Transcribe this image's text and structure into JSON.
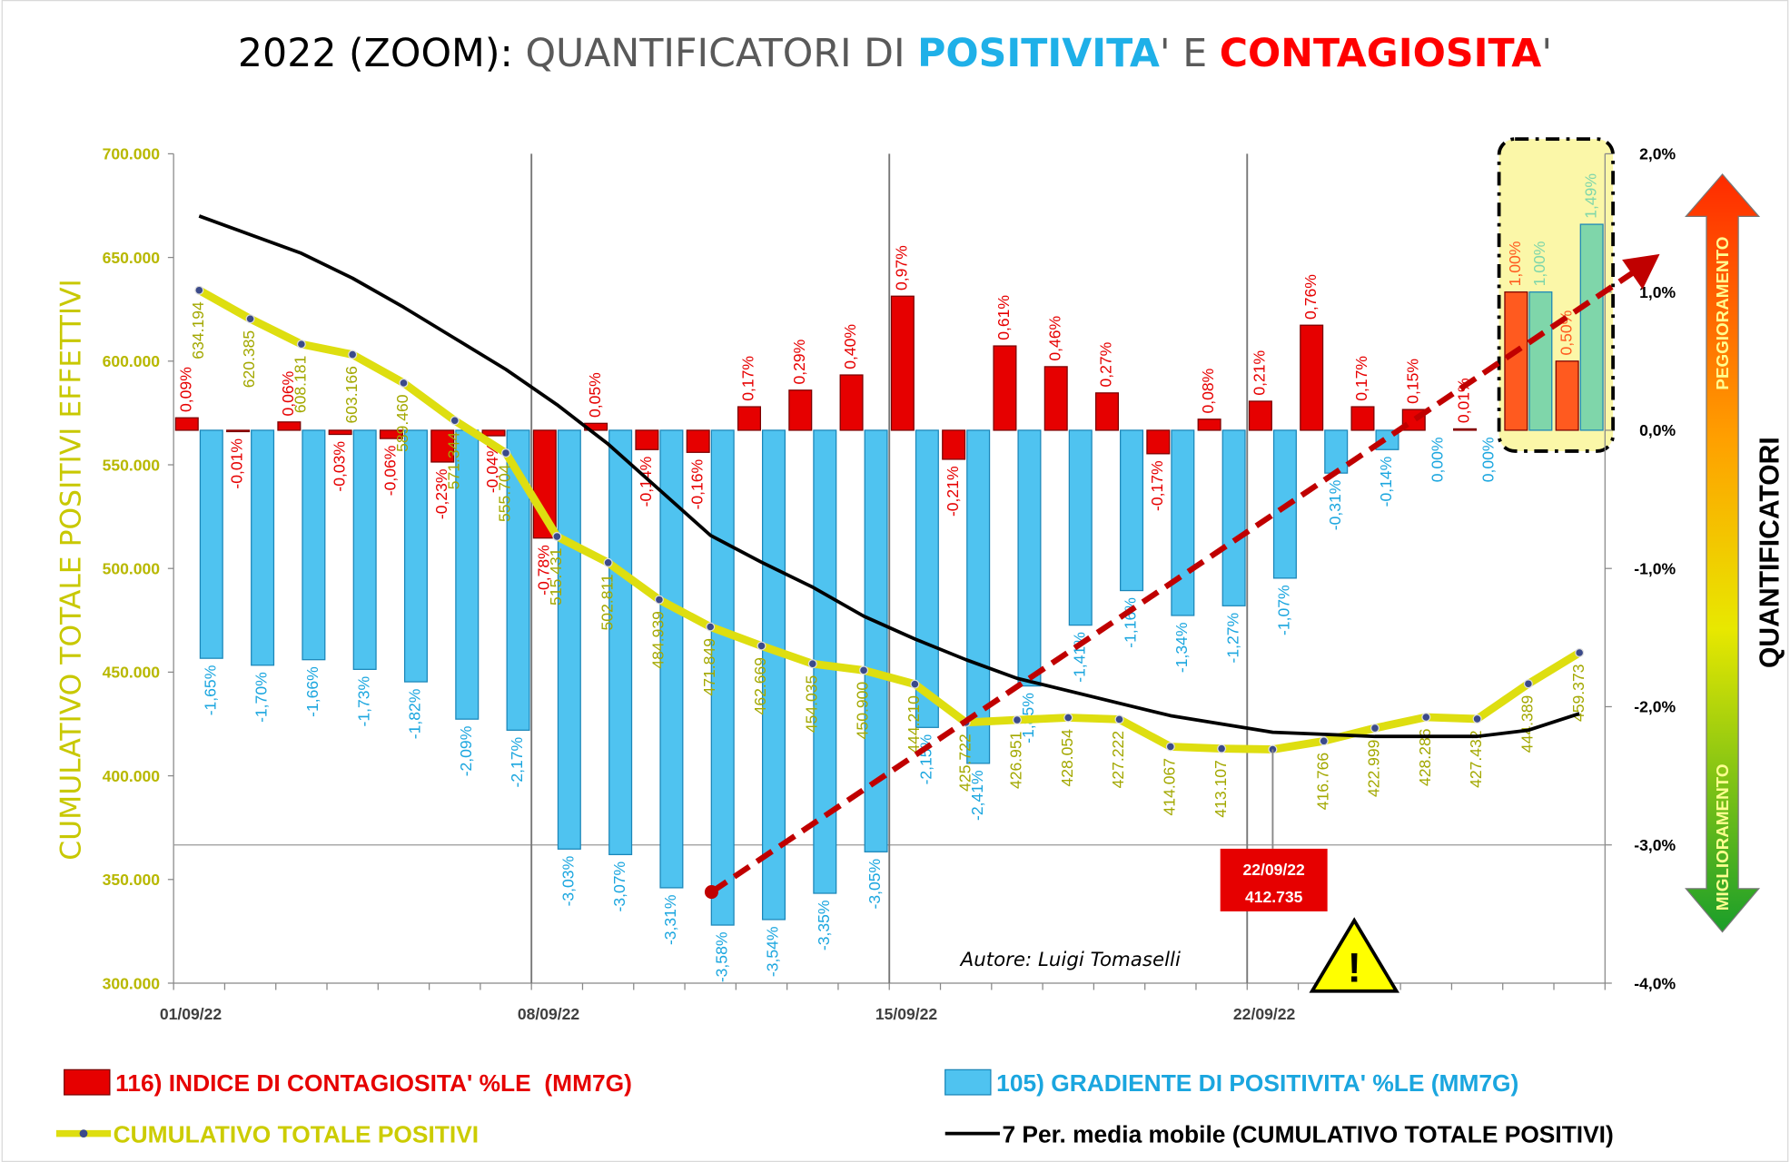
{
  "chart_data": {
    "type": "combo",
    "title_parts": [
      {
        "text": "2022 (ZOOM): ",
        "color": "#000000",
        "bold": false
      },
      {
        "text": "QUANTIFICATORI DI ",
        "color": "#595959",
        "bold": false
      },
      {
        "text": "POSITIVITA",
        "color": "#1fb0e8",
        "bold": true
      },
      {
        "text": "' E ",
        "color": "#595959",
        "bold": false
      },
      {
        "text": "CONTAGIOSITA",
        "color": "#ff0000",
        "bold": true
      },
      {
        "text": "'",
        "color": "#595959",
        "bold": false
      }
    ],
    "ylabel": "CUMULATIVO TOTALE POSITIVI EFFETTIVI",
    "y2label": "QUANTIFICATORI",
    "scale_top": "PEGGIORAMENTO",
    "scale_bottom": "MIGLIORAMENTO",
    "author": "Autore: Luigi Tomaselli",
    "callout": {
      "index": 21,
      "date": "22/09/22",
      "value": "412.735"
    },
    "categories": [
      "01/09/22",
      null,
      null,
      null,
      null,
      null,
      null,
      "08/09/22",
      null,
      null,
      null,
      null,
      null,
      null,
      "15/09/22",
      null,
      null,
      null,
      null,
      null,
      null,
      "22/09/22",
      null,
      null,
      null,
      null,
      null,
      null
    ],
    "ylim": [
      300000,
      700000
    ],
    "yticks": [
      {
        "value": 300000,
        "label": "300.000"
      },
      {
        "value": 350000,
        "label": "350.000"
      },
      {
        "value": 400000,
        "label": "400.000"
      },
      {
        "value": 450000,
        "label": "450.000"
      },
      {
        "value": 500000,
        "label": "500.000"
      },
      {
        "value": 550000,
        "label": "550.000"
      },
      {
        "value": 600000,
        "label": "600.000"
      },
      {
        "value": 650000,
        "label": "650.000"
      },
      {
        "value": 700000,
        "label": "700.000"
      }
    ],
    "y2lim": [
      -4,
      2
    ],
    "y2ticks": [
      {
        "value": -4,
        "label": "-4,0%"
      },
      {
        "value": -3,
        "label": "-3,0%"
      },
      {
        "value": -2,
        "label": "-2,0%"
      },
      {
        "value": -1,
        "label": "-1,0%"
      },
      {
        "value": 0,
        "label": "0,0%"
      },
      {
        "value": 1,
        "label": "1,0%"
      },
      {
        "value": 2,
        "label": "2,0%"
      }
    ],
    "series": [
      {
        "name": "116) INDICE DI CONTAGIOSITA' %LE  (MM7G)",
        "type": "bar",
        "axis": "y2",
        "color": "#e60000",
        "label_color": "#e60000",
        "colors": [
          "#e60000",
          "#e60000",
          "#e60000",
          "#e60000",
          "#e60000",
          "#e60000",
          "#e60000",
          "#e60000",
          "#e60000",
          "#e60000",
          "#e60000",
          "#e60000",
          "#e60000",
          "#e60000",
          "#e60000",
          "#e60000",
          "#e60000",
          "#e60000",
          "#e60000",
          "#e60000",
          "#e60000",
          "#e60000",
          "#e60000",
          "#e60000",
          "#e60000",
          "#e60000",
          "#ff5a1f",
          "#ff5a1f"
        ],
        "values": [
          0.09,
          -0.01,
          0.06,
          -0.03,
          -0.06,
          -0.23,
          -0.04,
          -0.78,
          0.05,
          -0.14,
          -0.16,
          0.17,
          0.29,
          0.4,
          0.97,
          -0.21,
          0.61,
          0.46,
          0.27,
          -0.17,
          0.08,
          0.21,
          0.76,
          0.17,
          0.15,
          0.01,
          1.0,
          0.5
        ],
        "value_labels": [
          "0,09%",
          "-0,01%",
          "0,06%",
          "-0,03%",
          "-0,06%",
          "-0,23%",
          "-0,04%",
          "-0,78%",
          "0,05%",
          "-0,14%",
          "-0,16%",
          "0,17%",
          "0,29%",
          "0,40%",
          "0,97%",
          "-0,21%",
          "0,61%",
          "0,46%",
          "0,27%",
          "-0,17%",
          "0,08%",
          "0,21%",
          "0,76%",
          "0,17%",
          "0,15%",
          "0,01%",
          "1,00%",
          "0,50%"
        ]
      },
      {
        "name": "105) GRADIENTE DI POSITIVITA' %LE (MM7G)",
        "type": "bar",
        "axis": "y2",
        "color": "#4fc3f0",
        "label_color": "#1ba6df",
        "colors": [
          "#4fc3f0",
          "#4fc3f0",
          "#4fc3f0",
          "#4fc3f0",
          "#4fc3f0",
          "#4fc3f0",
          "#4fc3f0",
          "#4fc3f0",
          "#4fc3f0",
          "#4fc3f0",
          "#4fc3f0",
          "#4fc3f0",
          "#4fc3f0",
          "#4fc3f0",
          "#4fc3f0",
          "#4fc3f0",
          "#4fc3f0",
          "#4fc3f0",
          "#4fc3f0",
          "#4fc3f0",
          "#4fc3f0",
          "#4fc3f0",
          "#4fc3f0",
          "#4fc3f0",
          "#4fc3f0",
          "#4fc3f0",
          "#7fd6aa",
          "#7fd6aa"
        ],
        "values": [
          -1.65,
          -1.7,
          -1.66,
          -1.73,
          -1.82,
          -2.09,
          -2.17,
          -3.03,
          -3.07,
          -3.31,
          -3.58,
          -3.54,
          -3.35,
          -3.05,
          -2.15,
          -2.41,
          -1.85,
          -1.41,
          -1.16,
          -1.34,
          -1.27,
          -1.07,
          -0.31,
          -0.14,
          0.0,
          0.0,
          1.0,
          1.49
        ],
        "value_labels": [
          "-1,65%",
          "-1,70%",
          "-1,66%",
          "-1,73%",
          "-1,82%",
          "-2,09%",
          "-2,17%",
          "-3,03%",
          "-3,07%",
          "-3,31%",
          "-3,58%",
          "-3,54%",
          "-3,35%",
          "-3,05%",
          "-2,15%",
          "-2,41%",
          "-1,85%",
          "-1,41%",
          "-1,16%",
          "-1,34%",
          "-1,27%",
          "-1,07%",
          "-0,31%",
          "-0,14%",
          "0,00%",
          "0,00%",
          "1,00%",
          "1,49%"
        ]
      },
      {
        "name": "CUMULATIVO TOTALE POSITIVI",
        "type": "line",
        "axis": "y",
        "color": "#dede10",
        "label_color": "#a3a800",
        "markers": true,
        "values": [
          634194,
          620385,
          608181,
          603166,
          589460,
          571344,
          555704,
          515431,
          502811,
          484939,
          471849,
          462669,
          454035,
          450900,
          444210,
          425722,
          426951,
          428054,
          427222,
          414067,
          413107,
          412735,
          416766,
          422999,
          428286,
          427432,
          444389,
          459373
        ],
        "value_labels": [
          "634.194",
          "620.385",
          "608.181",
          "603.166",
          "589.460",
          "571.344",
          "555.704",
          "515.431",
          "502.811",
          "484.939",
          "471.849",
          "462.669",
          "454.035",
          "450.900",
          "444.210",
          "425.722",
          "426.951",
          "428.054",
          "427.222",
          "414.067",
          "413.107",
          null,
          "416.766",
          "422.999",
          "428.286",
          "427.432",
          "444.389",
          "459.373"
        ]
      },
      {
        "name": "7 Per. media mobile (CUMULATIVO TOTALE POSITIVI)",
        "type": "line",
        "axis": "y",
        "color": "#000000",
        "markers": false,
        "values": [
          670000,
          661000,
          652000,
          640000,
          626000,
          611000,
          596000,
          579000,
          560000,
          538000,
          516000,
          503000,
          491000,
          477000,
          466000,
          456000,
          447000,
          441000,
          435000,
          429000,
          425000,
          421000,
          420000,
          419000,
          419000,
          419000,
          422000,
          430000
        ]
      }
    ]
  }
}
